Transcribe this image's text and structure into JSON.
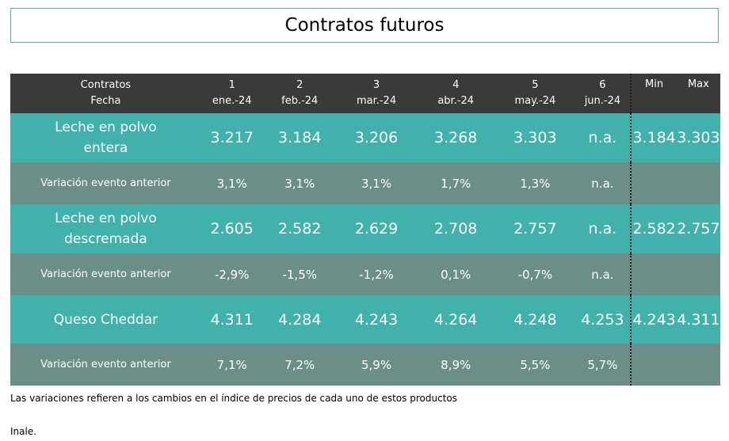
{
  "title": "Contratos futuros",
  "header": {
    "label_top": "Contratos",
    "label_bottom": "Fecha",
    "contracts": [
      {
        "num": "1",
        "date": "ene.-24"
      },
      {
        "num": "2",
        "date": "feb.-24"
      },
      {
        "num": "3",
        "date": "mar.-24"
      },
      {
        "num": "4",
        "date": "abr.-24"
      },
      {
        "num": "5",
        "date": "may.-24"
      },
      {
        "num": "6",
        "date": "jun.-24"
      }
    ],
    "min_label": "Min",
    "max_label": "Max"
  },
  "products": [
    {
      "name_line1": "Leche en polvo",
      "name_line2": "entera",
      "values": [
        "3.217",
        "3.184",
        "3.206",
        "3.268",
        "3.303",
        "n.a."
      ],
      "min": "3.184",
      "max": "3.303",
      "variation_label": "Variación evento anterior",
      "variations": [
        "3,1%",
        "3,1%",
        "3,1%",
        "1,7%",
        "1,3%",
        "n.a."
      ]
    },
    {
      "name_line1": "Leche en polvo",
      "name_line2": "descremada",
      "values": [
        "2.605",
        "2.582",
        "2.629",
        "2.708",
        "2.757",
        "n.a."
      ],
      "min": "2.582",
      "max": "2.757",
      "variation_label": "Variación evento anterior",
      "variations": [
        "-2,9%",
        "-1,5%",
        "-1,2%",
        "0,1%",
        "-0,7%",
        "n.a."
      ]
    },
    {
      "name_line1": "Queso Cheddar",
      "name_line2": "",
      "values": [
        "4.311",
        "4.284",
        "4.243",
        "4.264",
        "4.248",
        "4.253"
      ],
      "min": "4.243",
      "max": "4.311",
      "variation_label": "Variación evento anterior",
      "variations": [
        "7,1%",
        "7,2%",
        "5,9%",
        "8,9%",
        "5,5%",
        "5,7%"
      ]
    }
  ],
  "footnote": "Las variaciones refieren a los cambios en el índice de precios de cada uno de estos productos",
  "source": "Inale."
}
